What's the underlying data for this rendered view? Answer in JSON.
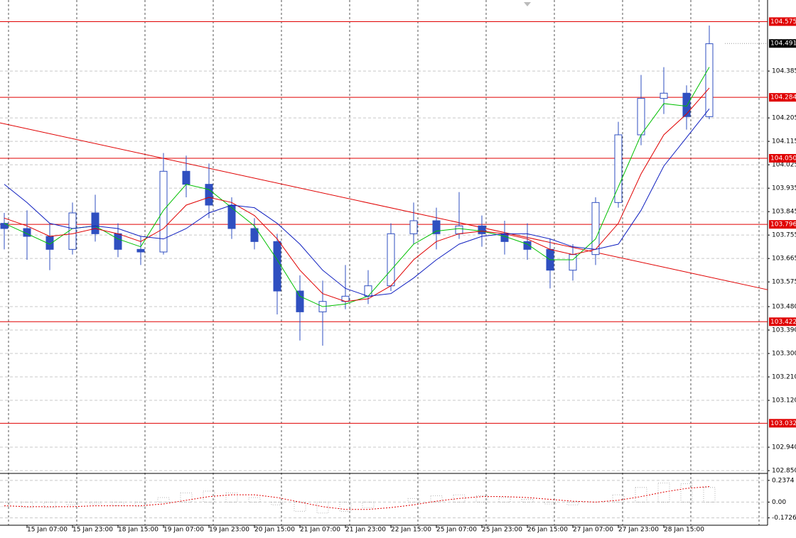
{
  "chart_data": [
    {
      "type": "candlestick",
      "color": "#2f4fc0",
      "open": [
        103.8,
        103.78,
        103.75,
        103.7,
        103.84,
        103.76,
        103.7,
        103.69,
        104.0,
        103.95,
        103.87,
        103.78,
        103.73,
        103.54,
        103.46,
        103.5,
        103.52,
        103.56,
        103.76,
        103.81,
        103.76,
        103.79,
        103.76,
        103.73,
        103.7,
        103.62,
        103.68,
        103.88,
        104.14,
        104.28,
        104.3,
        104.21
      ],
      "high": [
        103.84,
        103.85,
        103.8,
        103.88,
        103.91,
        103.8,
        103.75,
        104.07,
        104.06,
        104.03,
        103.9,
        103.82,
        103.76,
        103.6,
        103.58,
        103.64,
        103.62,
        103.8,
        103.88,
        103.86,
        103.92,
        103.83,
        103.81,
        103.8,
        103.74,
        103.72,
        103.9,
        104.19,
        104.37,
        104.4,
        104.33,
        104.56
      ],
      "low": [
        103.7,
        103.66,
        103.62,
        103.68,
        103.73,
        103.67,
        103.64,
        103.68,
        103.9,
        103.82,
        103.74,
        103.7,
        103.45,
        103.35,
        103.33,
        103.47,
        103.49,
        103.54,
        103.72,
        103.7,
        103.74,
        103.71,
        103.68,
        103.66,
        103.55,
        103.58,
        103.64,
        103.86,
        104.1,
        104.22,
        104.16,
        104.2
      ],
      "close": [
        103.78,
        103.75,
        103.7,
        103.84,
        103.76,
        103.7,
        103.69,
        104.0,
        103.95,
        103.87,
        103.78,
        103.73,
        103.54,
        103.46,
        103.5,
        103.52,
        103.56,
        103.76,
        103.81,
        103.76,
        103.79,
        103.76,
        103.73,
        103.7,
        103.62,
        103.68,
        103.88,
        104.14,
        104.28,
        104.3,
        104.21,
        104.49
      ],
      "series": [
        {
          "color": "#00c000",
          "values": [
            103.8,
            103.76,
            103.72,
            103.78,
            103.79,
            103.74,
            103.71,
            103.85,
            103.95,
            103.93,
            103.86,
            103.79,
            103.66,
            103.52,
            103.48,
            103.49,
            103.52,
            103.62,
            103.72,
            103.77,
            103.78,
            103.77,
            103.75,
            103.72,
            103.66,
            103.66,
            103.74,
            103.94,
            104.14,
            104.26,
            104.25,
            104.4
          ]
        },
        {
          "color": "#e00000",
          "values": [
            103.82,
            103.79,
            103.75,
            103.76,
            103.78,
            103.76,
            103.73,
            103.78,
            103.87,
            103.9,
            103.88,
            103.83,
            103.74,
            103.62,
            103.53,
            103.5,
            103.51,
            103.56,
            103.66,
            103.73,
            103.76,
            103.77,
            103.76,
            103.74,
            103.7,
            103.68,
            103.7,
            103.8,
            103.99,
            104.14,
            104.22,
            104.32
          ]
        },
        {
          "color": "#1020c0",
          "values": [
            103.95,
            103.88,
            103.8,
            103.78,
            103.79,
            103.78,
            103.75,
            103.74,
            103.78,
            103.84,
            103.87,
            103.86,
            103.8,
            103.72,
            103.62,
            103.55,
            103.52,
            103.53,
            103.59,
            103.66,
            103.72,
            103.75,
            103.76,
            103.76,
            103.74,
            103.71,
            103.7,
            103.72,
            103.85,
            104.02,
            104.13,
            104.24
          ]
        }
      ],
      "ylim": [
        102.842,
        104.658
      ],
      "yticks": [
        {
          "value": 102.85,
          "label": "102.850"
        },
        {
          "value": 102.94,
          "label": "102.940"
        },
        {
          "value": 103.12,
          "label": "103.120"
        },
        {
          "value": 103.21,
          "label": "103.210"
        },
        {
          "value": 103.3,
          "label": "103.300"
        },
        {
          "value": 103.39,
          "label": "103.390"
        },
        {
          "value": 103.48,
          "label": "103.480"
        },
        {
          "value": 103.575,
          "label": "103.575"
        },
        {
          "value": 103.665,
          "label": "103.665"
        },
        {
          "value": 103.755,
          "label": "103.755"
        },
        {
          "value": 103.845,
          "label": "103.845"
        },
        {
          "value": 103.935,
          "label": "103.935"
        },
        {
          "value": 104.025,
          "label": "104.025"
        },
        {
          "value": 104.115,
          "label": "104.115"
        },
        {
          "value": 104.205,
          "label": "104.205"
        },
        {
          "value": 104.385,
          "label": "104.385"
        }
      ],
      "xticks": [
        "15 Jan 07:00",
        "15 Jan 23:00",
        "18 Jan 15:00",
        "19 Jan 07:00",
        "19 Jan 23:00",
        "20 Jan 15:00",
        "21 Jan 07:00",
        "21 Jan 23:00",
        "22 Jan 15:00",
        "25 Jan 07:00",
        "25 Jan 23:00",
        "26 Jan 15:00",
        "27 Jan 07:00",
        "27 Jan 23:00",
        "28 Jan 15:00"
      ],
      "levels": [
        {
          "value": 104.575,
          "label": "104.575"
        },
        {
          "value": 104.284,
          "label": "104.284"
        },
        {
          "value": 104.05,
          "label": "104.050"
        },
        {
          "value": 103.796,
          "label": "103.796"
        },
        {
          "value": 103.422,
          "label": "103.422"
        },
        {
          "value": 103.032,
          "label": "103.032"
        }
      ],
      "level_color": "#e00000",
      "current_price": {
        "value": 104.491,
        "label": "104.491"
      },
      "trendline": {
        "values": [
          104.186,
          103.545
        ],
        "color": "#e00000"
      },
      "grid": true
    },
    {
      "type": "histogram",
      "color": "#a0a0a0",
      "values": [
        -0.05,
        -0.06,
        -0.06,
        -0.03,
        -0.02,
        -0.04,
        -0.05,
        0.05,
        0.1,
        0.12,
        0.1,
        0.05,
        -0.03,
        -0.1,
        -0.12,
        -0.1,
        -0.06,
        0.0,
        0.04,
        0.07,
        0.08,
        0.07,
        0.05,
        0.03,
        -0.02,
        -0.03,
        0.0,
        0.08,
        0.16,
        0.21,
        0.2,
        0.16
      ],
      "series": [
        {
          "color": "#e00000",
          "values": [
            -0.04,
            -0.05,
            -0.05,
            -0.05,
            -0.04,
            -0.04,
            -0.04,
            -0.02,
            0.02,
            0.06,
            0.08,
            0.08,
            0.05,
            0.0,
            -0.05,
            -0.08,
            -0.08,
            -0.06,
            -0.03,
            0.01,
            0.04,
            0.06,
            0.06,
            0.05,
            0.03,
            0.01,
            0.0,
            0.02,
            0.06,
            0.11,
            0.15,
            0.17
          ]
        }
      ],
      "ylim": [
        -0.253,
        0.306
      ],
      "yticks": [
        0.2374,
        {
          "value": 0,
          "label": "0.00"
        },
        -0.1726
      ],
      "grid": true
    }
  ]
}
